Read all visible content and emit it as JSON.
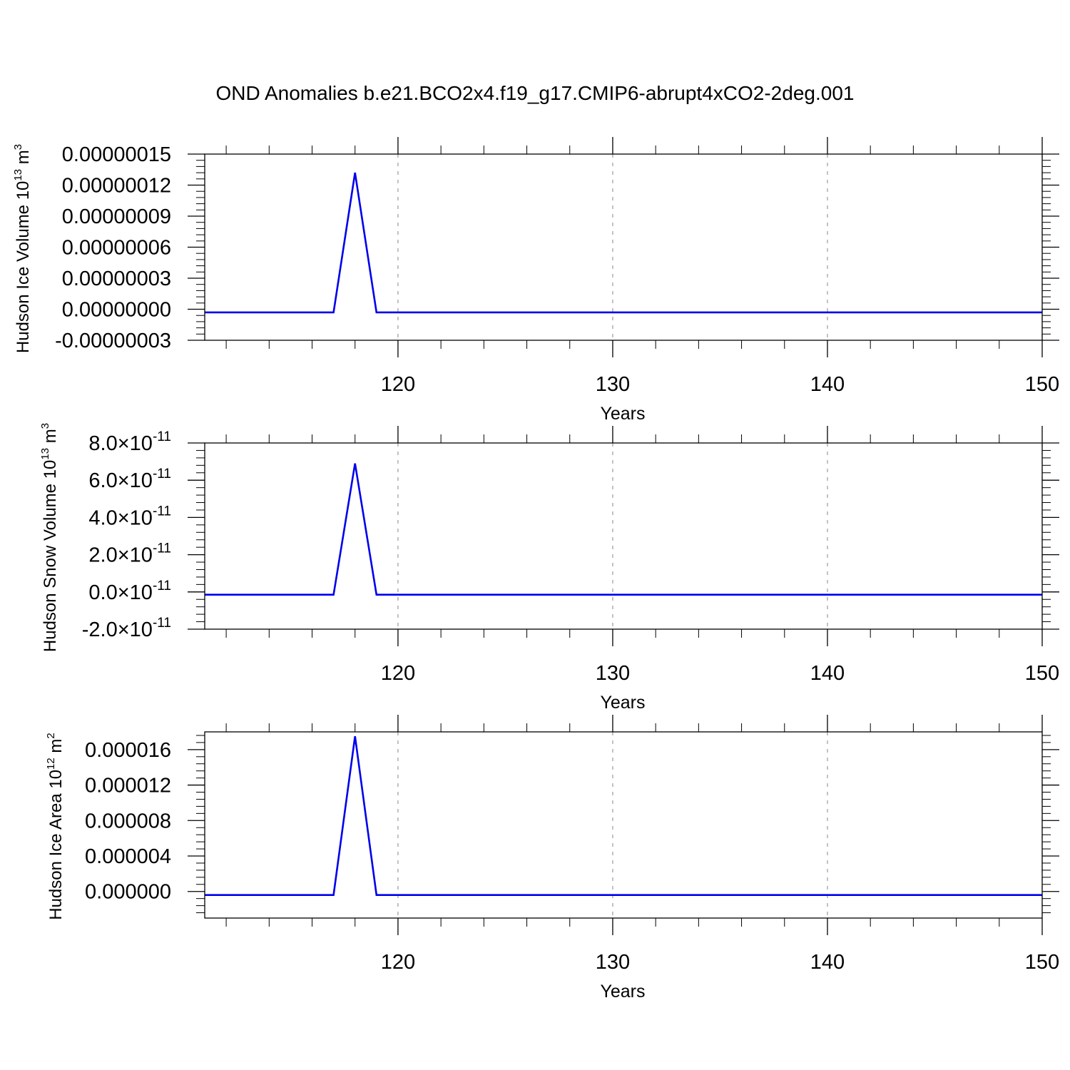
{
  "title": "OND Anomalies b.e21.BCO2x4.f19_g17.CMIP6-abrupt4xCO2-2deg.001",
  "colors": {
    "line": "#0000ee",
    "axis": "#000000",
    "grid": "#9a9a9a"
  },
  "chart_data": [
    {
      "type": "line",
      "xlabel": "Years",
      "ylabel": {
        "main": "Hudson Ice Volume 10",
        "exp": "13",
        "unit": " m",
        "unit_exp": "3"
      },
      "xlim": [
        111,
        150
      ],
      "ylim": [
        -3e-08,
        1.5e-07
      ],
      "grid": "vertical dashed at major x ticks",
      "x_ticks": [
        120,
        130,
        140,
        150
      ],
      "x_tick_labels": [
        "120",
        "130",
        "140",
        "150"
      ],
      "y_ticks": [
        -3e-08,
        0,
        3e-08,
        6e-08,
        9e-08,
        1.2e-07,
        1.5e-07
      ],
      "y_tick_labels": [
        "-0.00000003",
        "0.00000000",
        "0.00000003",
        "0.00000006",
        "0.00000009",
        "0.00000012",
        "0.00000015"
      ],
      "series": [
        {
          "x": [
            111,
            117,
            118,
            119,
            150
          ],
          "y": [
            -3e-09,
            -3e-09,
            1.32e-07,
            -3e-09,
            -3e-09
          ]
        }
      ]
    },
    {
      "type": "line",
      "xlabel": "Years",
      "ylabel": {
        "main": "Hudson Snow Volume 10",
        "exp": "13",
        "unit": " m",
        "unit_exp": "3"
      },
      "xlim": [
        111,
        150
      ],
      "ylim": [
        -2e-11,
        8e-11
      ],
      "grid": "vertical dashed at major x ticks",
      "x_ticks": [
        120,
        130,
        140,
        150
      ],
      "x_tick_labels": [
        "120",
        "130",
        "140",
        "150"
      ],
      "y_ticks": [
        -2e-11,
        0,
        2e-11,
        4e-11,
        6e-11,
        8e-11
      ],
      "y_tick_labels": [
        {
          "mant": "-2.0",
          "exp": "-11"
        },
        {
          "mant": "0.0",
          "exp": "-11"
        },
        {
          "mant": "2.0",
          "exp": "-11"
        },
        {
          "mant": "4.0",
          "exp": "-11"
        },
        {
          "mant": "6.0",
          "exp": "-11"
        },
        {
          "mant": "8.0",
          "exp": "-11"
        }
      ],
      "series": [
        {
          "x": [
            111,
            117,
            118,
            119,
            150
          ],
          "y": [
            -1.5e-12,
            -1.5e-12,
            6.9e-11,
            -1.5e-12,
            -1.5e-12
          ]
        }
      ]
    },
    {
      "type": "line",
      "xlabel": "Years",
      "ylabel": {
        "main": "Hudson Ice Area 10",
        "exp": "12",
        "unit": " m",
        "unit_exp": "2"
      },
      "xlim": [
        111,
        150
      ],
      "ylim": [
        -3e-06,
        1.8e-05
      ],
      "grid": "vertical dashed at major x ticks",
      "x_ticks": [
        120,
        130,
        140,
        150
      ],
      "x_tick_labels": [
        "120",
        "130",
        "140",
        "150"
      ],
      "y_ticks": [
        0,
        4e-06,
        8e-06,
        1.2e-05,
        1.6e-05
      ],
      "y_tick_labels": [
        "0.000000",
        "0.000004",
        "0.000008",
        "0.000012",
        "0.000016"
      ],
      "series": [
        {
          "x": [
            111,
            117,
            118,
            119,
            150
          ],
          "y": [
            -4e-07,
            -4e-07,
            1.75e-05,
            -4e-07,
            -4e-07
          ]
        }
      ]
    }
  ]
}
